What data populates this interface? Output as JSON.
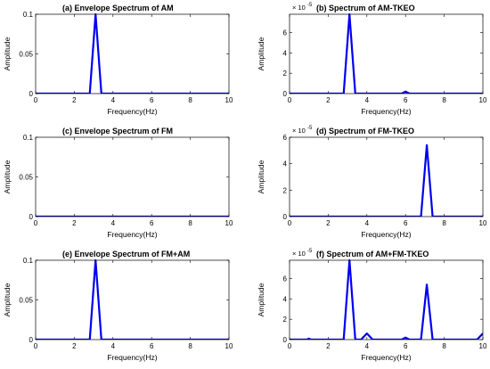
{
  "colors": {
    "line": "#0000ee",
    "axes": "#000000",
    "background": "#ffffff"
  },
  "chart_data": [
    {
      "type": "line",
      "title": "(a) Envelope Spectrum of AM",
      "xlabel": "Frequency(Hz)",
      "ylabel": "Amplitude",
      "xlim": [
        0,
        10
      ],
      "ylim": [
        0,
        0.1
      ],
      "xticks": [
        0,
        2,
        4,
        6,
        8,
        10
      ],
      "yticks": [
        0,
        0.05,
        0.1
      ],
      "ytick_labels": [
        "0",
        "0.05",
        "0.1"
      ],
      "y_multiplier": "",
      "grid": false,
      "x": [
        0,
        2.8,
        3.1,
        3.4,
        10
      ],
      "y": [
        0,
        0,
        0.1,
        0,
        0
      ]
    },
    {
      "type": "line",
      "title": "(b) Spectrum of AM-TKEO",
      "xlabel": "Frequency(Hz)",
      "ylabel": "Amplitude",
      "xlim": [
        0,
        10
      ],
      "ylim": [
        0,
        7.8
      ],
      "xticks": [
        0,
        2,
        4,
        6,
        8,
        10
      ],
      "yticks": [
        0,
        2,
        4,
        6
      ],
      "ytick_labels": [
        "0",
        "2",
        "4",
        "6"
      ],
      "y_multiplier": "× 10",
      "y_multiplier_exp": "-5",
      "grid": false,
      "x": [
        0,
        2.8,
        3.1,
        3.4,
        5.8,
        6.0,
        6.2,
        10
      ],
      "y": [
        0,
        0,
        7.8,
        0,
        0,
        0.2,
        0,
        0
      ]
    },
    {
      "type": "line",
      "title": "(c) Envelope Spectrum of FM",
      "xlabel": "Frequency(Hz)",
      "ylabel": "Amplitude",
      "xlim": [
        0,
        10
      ],
      "ylim": [
        0,
        0.1
      ],
      "xticks": [
        0,
        2,
        4,
        6,
        8,
        10
      ],
      "yticks": [
        0,
        0.05,
        0.1
      ],
      "ytick_labels": [
        "0",
        "0.05",
        "0.1"
      ],
      "y_multiplier": "",
      "grid": false,
      "x": [
        0,
        10
      ],
      "y": [
        0,
        0
      ]
    },
    {
      "type": "line",
      "title": "(d) Spectrum of FM-TKEO",
      "xlabel": "Frequency(Hz)",
      "ylabel": "Amplitude",
      "xlim": [
        0,
        10
      ],
      "ylim": [
        0,
        6
      ],
      "xticks": [
        0,
        2,
        4,
        6,
        8,
        10
      ],
      "yticks": [
        0,
        2,
        4,
        6
      ],
      "ytick_labels": [
        "0",
        "2",
        "4",
        "6"
      ],
      "y_multiplier": "× 10",
      "y_multiplier_exp": "-5",
      "grid": false,
      "x": [
        0,
        6.8,
        7.1,
        7.4,
        10
      ],
      "y": [
        0,
        0,
        5.4,
        0,
        0
      ]
    },
    {
      "type": "line",
      "title": "(e) Envelope Spectrum of FM+AM",
      "xlabel": "Frequency(Hz)",
      "ylabel": "Amplitude",
      "xlim": [
        0,
        10
      ],
      "ylim": [
        0,
        0.1
      ],
      "xticks": [
        0,
        2,
        4,
        6,
        8,
        10
      ],
      "yticks": [
        0,
        0.05,
        0.1
      ],
      "ytick_labels": [
        "0",
        "0.05",
        "0.1"
      ],
      "y_multiplier": "",
      "grid": false,
      "x": [
        0,
        2.8,
        3.1,
        3.4,
        10
      ],
      "y": [
        0,
        0,
        0.1,
        0,
        0
      ]
    },
    {
      "type": "line",
      "title": "(f) Spectrum of AM+FM-TKEO",
      "xlabel": "Frequency(Hz)",
      "ylabel": "Amplitude",
      "xlim": [
        0,
        10
      ],
      "ylim": [
        0,
        7.8
      ],
      "xticks": [
        0,
        2,
        4,
        6,
        8,
        10
      ],
      "yticks": [
        0,
        2,
        4,
        6
      ],
      "ytick_labels": [
        "0",
        "2",
        "4",
        "6"
      ],
      "y_multiplier": "× 10",
      "y_multiplier_exp": "-5",
      "grid": false,
      "x": [
        0,
        0.9,
        1.0,
        1.1,
        2.8,
        3.1,
        3.4,
        3.7,
        4.0,
        4.3,
        5.8,
        6.0,
        6.2,
        6.8,
        7.1,
        7.4,
        9.7,
        10
      ],
      "y": [
        0,
        0,
        0.1,
        0,
        0,
        7.8,
        0,
        0,
        0.6,
        0,
        0,
        0.2,
        0,
        0,
        5.4,
        0,
        0,
        0.6
      ]
    }
  ]
}
